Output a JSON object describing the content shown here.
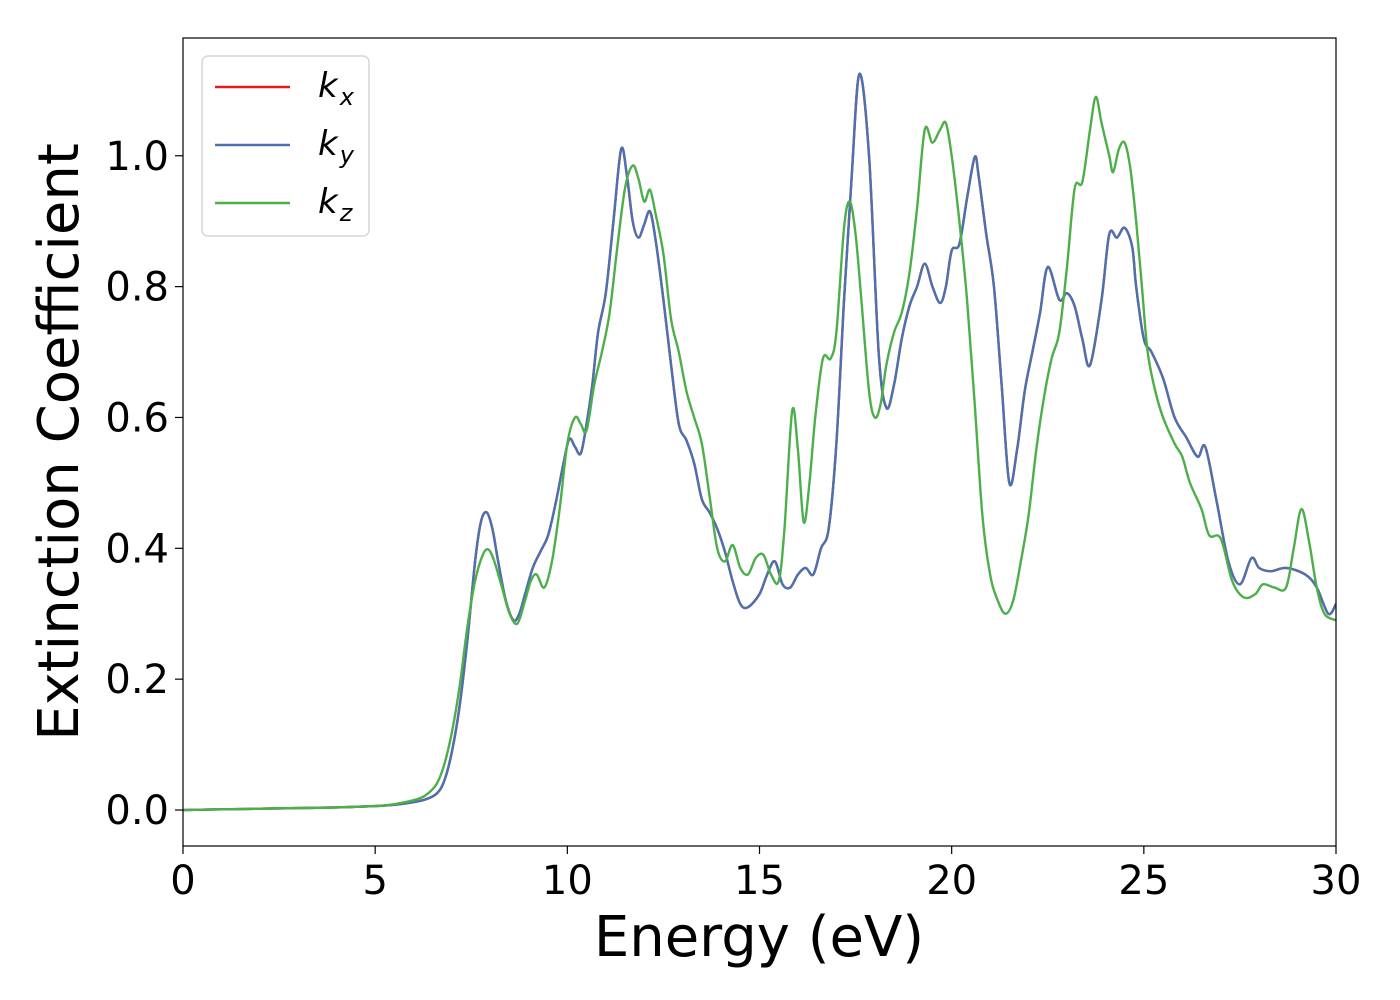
{
  "chart_data": {
    "type": "line",
    "xlabel": "Energy (eV)",
    "ylabel": "Extinction Coefficient",
    "xlim": [
      0,
      30
    ],
    "ylim": [
      -0.055,
      1.18
    ],
    "xticks": [
      "0",
      "5",
      "10",
      "15",
      "20",
      "25",
      "30"
    ],
    "yticks": [
      "0.0",
      "0.2",
      "0.4",
      "0.6",
      "0.8",
      "1.0"
    ],
    "grid": false,
    "legend_position": "top-left",
    "series": [
      {
        "name": "k",
        "subscript": "x",
        "color": "#e41a1c",
        "x": [
          0,
          1,
          2,
          3,
          4,
          5,
          5.5,
          6,
          6.3,
          6.6,
          6.8,
          7,
          7.2,
          7.4,
          7.6,
          7.75,
          7.9,
          8.05,
          8.2,
          8.4,
          8.6,
          8.75,
          8.9,
          9.1,
          9.3,
          9.5,
          9.7,
          9.9,
          10.05,
          10.2,
          10.35,
          10.5,
          10.65,
          10.8,
          11,
          11.2,
          11.4,
          11.55,
          11.7,
          11.85,
          12,
          12.15,
          12.3,
          12.5,
          12.7,
          12.9,
          13.1,
          13.3,
          13.5,
          13.7,
          13.9,
          14.1,
          14.3,
          14.5,
          14.7,
          15,
          15.2,
          15.4,
          15.6,
          15.8,
          16,
          16.2,
          16.4,
          16.6,
          16.8,
          17,
          17.2,
          17.4,
          17.6,
          17.85,
          18.1,
          18.3,
          18.5,
          18.7,
          18.9,
          19.1,
          19.3,
          19.5,
          19.7,
          19.85,
          20,
          20.2,
          20.4,
          20.6,
          20.7,
          20.9,
          21.1,
          21.3,
          21.5,
          21.7,
          21.9,
          22.1,
          22.3,
          22.5,
          22.8,
          23,
          23.2,
          23.4,
          23.6,
          23.9,
          24.1,
          24.3,
          24.5,
          24.7,
          24.8,
          25,
          25.2,
          25.5,
          25.8,
          26.1,
          26.4,
          26.6,
          26.9,
          27.2,
          27.5,
          27.8,
          28,
          28.3,
          28.7,
          29.2,
          29.5,
          29.8,
          30
        ],
        "y": [
          0.0,
          0.001,
          0.002,
          0.003,
          0.004,
          0.006,
          0.008,
          0.012,
          0.016,
          0.025,
          0.045,
          0.09,
          0.16,
          0.26,
          0.38,
          0.44,
          0.455,
          0.43,
          0.38,
          0.32,
          0.29,
          0.3,
          0.33,
          0.37,
          0.395,
          0.42,
          0.47,
          0.53,
          0.567,
          0.555,
          0.545,
          0.59,
          0.65,
          0.73,
          0.79,
          0.9,
          1.01,
          0.97,
          0.9,
          0.875,
          0.895,
          0.915,
          0.87,
          0.78,
          0.68,
          0.59,
          0.565,
          0.53,
          0.475,
          0.455,
          0.43,
          0.395,
          0.35,
          0.315,
          0.31,
          0.33,
          0.36,
          0.38,
          0.345,
          0.34,
          0.36,
          0.37,
          0.36,
          0.4,
          0.43,
          0.56,
          0.78,
          0.97,
          1.125,
          1.0,
          0.7,
          0.615,
          0.65,
          0.72,
          0.77,
          0.8,
          0.835,
          0.8,
          0.775,
          0.8,
          0.855,
          0.865,
          0.935,
          0.998,
          0.97,
          0.88,
          0.8,
          0.65,
          0.5,
          0.55,
          0.64,
          0.7,
          0.76,
          0.83,
          0.78,
          0.79,
          0.77,
          0.72,
          0.68,
          0.78,
          0.88,
          0.875,
          0.89,
          0.86,
          0.8,
          0.72,
          0.7,
          0.66,
          0.6,
          0.57,
          0.54,
          0.555,
          0.47,
          0.38,
          0.345,
          0.385,
          0.37,
          0.365,
          0.37,
          0.36,
          0.34,
          0.3,
          0.315
        ]
      },
      {
        "name": "k",
        "subscript": "y",
        "color": "#4a72b0",
        "x": [
          0,
          1,
          2,
          3,
          4,
          5,
          5.5,
          6,
          6.3,
          6.6,
          6.8,
          7,
          7.2,
          7.4,
          7.6,
          7.75,
          7.9,
          8.05,
          8.2,
          8.4,
          8.6,
          8.75,
          8.9,
          9.1,
          9.3,
          9.5,
          9.7,
          9.9,
          10.05,
          10.2,
          10.35,
          10.5,
          10.65,
          10.8,
          11,
          11.2,
          11.4,
          11.55,
          11.7,
          11.85,
          12,
          12.15,
          12.3,
          12.5,
          12.7,
          12.9,
          13.1,
          13.3,
          13.5,
          13.7,
          13.9,
          14.1,
          14.3,
          14.5,
          14.7,
          15,
          15.2,
          15.4,
          15.6,
          15.8,
          16,
          16.2,
          16.4,
          16.6,
          16.8,
          17,
          17.2,
          17.4,
          17.6,
          17.85,
          18.1,
          18.3,
          18.5,
          18.7,
          18.9,
          19.1,
          19.3,
          19.5,
          19.7,
          19.85,
          20,
          20.2,
          20.4,
          20.6,
          20.7,
          20.9,
          21.1,
          21.3,
          21.5,
          21.7,
          21.9,
          22.1,
          22.3,
          22.5,
          22.8,
          23,
          23.2,
          23.4,
          23.6,
          23.9,
          24.1,
          24.3,
          24.5,
          24.7,
          24.8,
          25,
          25.2,
          25.5,
          25.8,
          26.1,
          26.4,
          26.6,
          26.9,
          27.2,
          27.5,
          27.8,
          28,
          28.3,
          28.7,
          29.2,
          29.5,
          29.8,
          30
        ],
        "y": [
          0.0,
          0.001,
          0.002,
          0.003,
          0.004,
          0.006,
          0.008,
          0.012,
          0.016,
          0.025,
          0.045,
          0.09,
          0.16,
          0.26,
          0.38,
          0.44,
          0.455,
          0.43,
          0.38,
          0.32,
          0.29,
          0.3,
          0.33,
          0.37,
          0.395,
          0.42,
          0.47,
          0.53,
          0.567,
          0.555,
          0.545,
          0.59,
          0.65,
          0.73,
          0.79,
          0.9,
          1.01,
          0.97,
          0.9,
          0.875,
          0.895,
          0.915,
          0.87,
          0.78,
          0.68,
          0.59,
          0.565,
          0.53,
          0.475,
          0.455,
          0.43,
          0.395,
          0.35,
          0.315,
          0.31,
          0.33,
          0.36,
          0.38,
          0.345,
          0.34,
          0.36,
          0.37,
          0.36,
          0.4,
          0.43,
          0.56,
          0.78,
          0.97,
          1.125,
          1.0,
          0.7,
          0.615,
          0.65,
          0.72,
          0.77,
          0.8,
          0.835,
          0.8,
          0.775,
          0.8,
          0.855,
          0.865,
          0.935,
          0.998,
          0.97,
          0.88,
          0.8,
          0.65,
          0.5,
          0.55,
          0.64,
          0.7,
          0.76,
          0.83,
          0.78,
          0.79,
          0.77,
          0.72,
          0.68,
          0.78,
          0.88,
          0.875,
          0.89,
          0.86,
          0.8,
          0.72,
          0.7,
          0.66,
          0.6,
          0.57,
          0.54,
          0.555,
          0.47,
          0.38,
          0.345,
          0.385,
          0.37,
          0.365,
          0.37,
          0.36,
          0.34,
          0.3,
          0.315
        ]
      },
      {
        "name": "k",
        "subscript": "z",
        "color": "#4daf4a",
        "x": [
          0,
          1,
          2,
          3,
          4,
          5,
          5.5,
          6,
          6.3,
          6.6,
          6.8,
          7,
          7.2,
          7.4,
          7.6,
          7.8,
          7.95,
          8.1,
          8.3,
          8.5,
          8.7,
          8.9,
          9.05,
          9.2,
          9.4,
          9.6,
          9.8,
          10,
          10.2,
          10.35,
          10.5,
          10.7,
          10.9,
          11.1,
          11.3,
          11.5,
          11.7,
          11.85,
          12,
          12.15,
          12.3,
          12.5,
          12.7,
          12.9,
          13.1,
          13.3,
          13.5,
          13.7,
          13.9,
          14.1,
          14.3,
          14.5,
          14.7,
          14.9,
          15.1,
          15.3,
          15.5,
          15.65,
          15.85,
          16,
          16.15,
          16.3,
          16.45,
          16.65,
          16.85,
          17,
          17.2,
          17.35,
          17.5,
          17.65,
          17.85,
          18,
          18.15,
          18.3,
          18.5,
          18.7,
          18.9,
          19.1,
          19.3,
          19.5,
          19.7,
          19.85,
          20,
          20.2,
          20.4,
          20.6,
          20.8,
          21,
          21.2,
          21.4,
          21.6,
          21.8,
          22,
          22.2,
          22.4,
          22.6,
          22.8,
          23,
          23.2,
          23.4,
          23.6,
          23.75,
          23.9,
          24.1,
          24.2,
          24.35,
          24.5,
          24.65,
          24.8,
          24.95,
          25.1,
          25.3,
          25.5,
          25.8,
          26,
          26.2,
          26.5,
          26.7,
          27,
          27.3,
          27.6,
          27.9,
          28.1,
          28.4,
          28.7,
          28.9,
          29.1,
          29.3,
          29.5,
          29.7,
          30
        ],
        "y": [
          0.0,
          0.001,
          0.002,
          0.003,
          0.004,
          0.006,
          0.009,
          0.015,
          0.022,
          0.04,
          0.07,
          0.12,
          0.19,
          0.28,
          0.35,
          0.39,
          0.398,
          0.38,
          0.34,
          0.3,
          0.285,
          0.32,
          0.35,
          0.36,
          0.34,
          0.38,
          0.46,
          0.56,
          0.6,
          0.59,
          0.58,
          0.65,
          0.7,
          0.76,
          0.86,
          0.95,
          0.985,
          0.965,
          0.93,
          0.948,
          0.91,
          0.85,
          0.75,
          0.7,
          0.64,
          0.6,
          0.56,
          0.48,
          0.4,
          0.38,
          0.405,
          0.37,
          0.36,
          0.385,
          0.39,
          0.36,
          0.35,
          0.43,
          0.61,
          0.55,
          0.44,
          0.5,
          0.6,
          0.69,
          0.69,
          0.73,
          0.89,
          0.93,
          0.88,
          0.78,
          0.64,
          0.6,
          0.62,
          0.68,
          0.73,
          0.76,
          0.82,
          0.92,
          1.04,
          1.02,
          1.04,
          1.05,
          1.0,
          0.9,
          0.78,
          0.62,
          0.45,
          0.36,
          0.32,
          0.3,
          0.32,
          0.38,
          0.45,
          0.55,
          0.63,
          0.69,
          0.73,
          0.83,
          0.95,
          0.96,
          1.04,
          1.09,
          1.05,
          1.0,
          0.975,
          1.01,
          1.02,
          0.98,
          0.9,
          0.8,
          0.7,
          0.64,
          0.6,
          0.56,
          0.54,
          0.5,
          0.46,
          0.42,
          0.415,
          0.35,
          0.325,
          0.33,
          0.345,
          0.34,
          0.34,
          0.4,
          0.46,
          0.41,
          0.34,
          0.3,
          0.29
        ]
      }
    ]
  }
}
